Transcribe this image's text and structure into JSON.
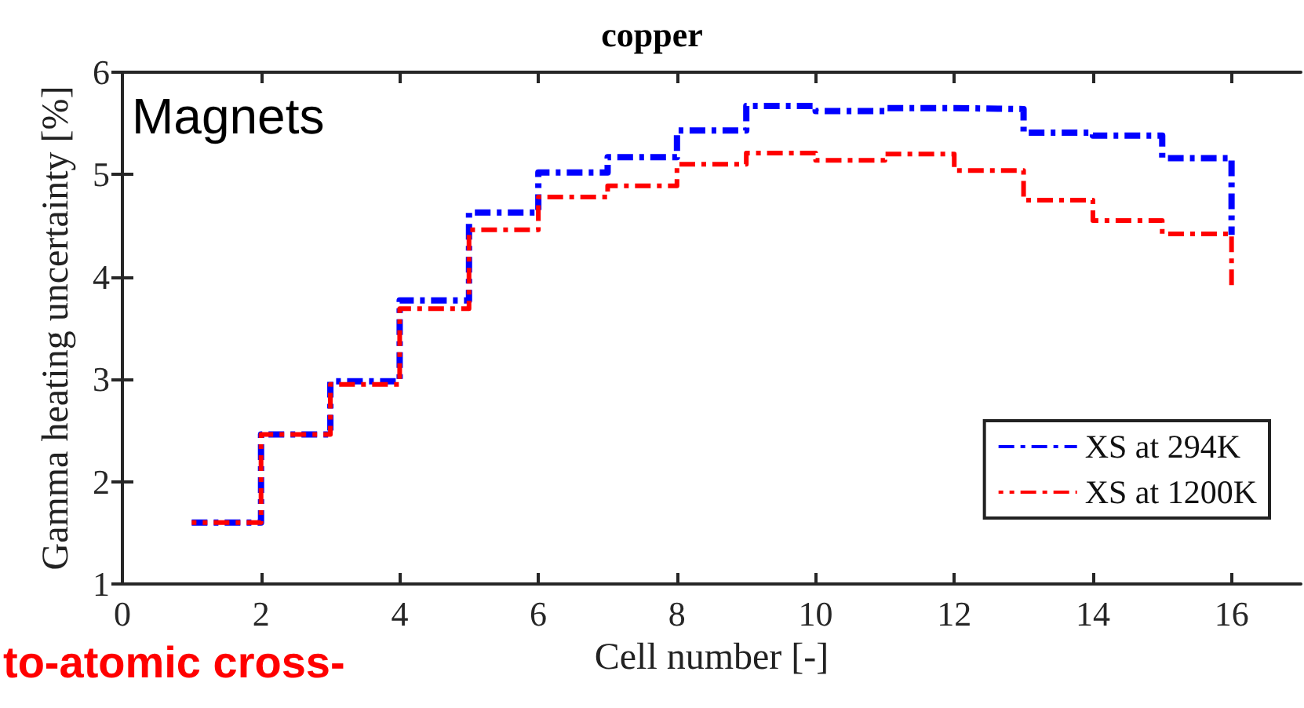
{
  "chart_data": {
    "type": "step",
    "title": "copper",
    "xlabel": "Cell number [-]",
    "ylabel": "Gamma heating uncertainty [%]",
    "annotations": [
      "Magnets",
      "to-atomic cross-"
    ],
    "x": [
      1,
      2,
      3,
      4,
      5,
      6,
      7,
      8,
      9,
      10,
      11,
      12,
      13,
      14,
      15,
      16
    ],
    "series": [
      {
        "name": "XS at 294K",
        "color": "#0000ff",
        "values": [
          1.6,
          2.46,
          2.98,
          3.77,
          4.63,
          5.02,
          5.17,
          5.43,
          5.67,
          5.62,
          5.65,
          5.64,
          5.41,
          5.38,
          5.16,
          4.41
        ]
      },
      {
        "name": "XS at 1200K",
        "color": "#ff0000",
        "values": [
          1.6,
          2.46,
          2.95,
          3.69,
          4.46,
          4.78,
          4.89,
          5.1,
          5.21,
          5.14,
          5.2,
          5.04,
          4.75,
          4.55,
          4.42,
          3.87
        ]
      }
    ],
    "xlim": [
      0,
      17
    ],
    "xticks": [
      0,
      2,
      4,
      6,
      8,
      10,
      12,
      14,
      16
    ],
    "ylim": [
      1,
      6
    ],
    "yticks": [
      1,
      2,
      3,
      4,
      5,
      6
    ],
    "grid": false,
    "legend": "bottom right",
    "marker": "none",
    "line_style": "dashed"
  }
}
